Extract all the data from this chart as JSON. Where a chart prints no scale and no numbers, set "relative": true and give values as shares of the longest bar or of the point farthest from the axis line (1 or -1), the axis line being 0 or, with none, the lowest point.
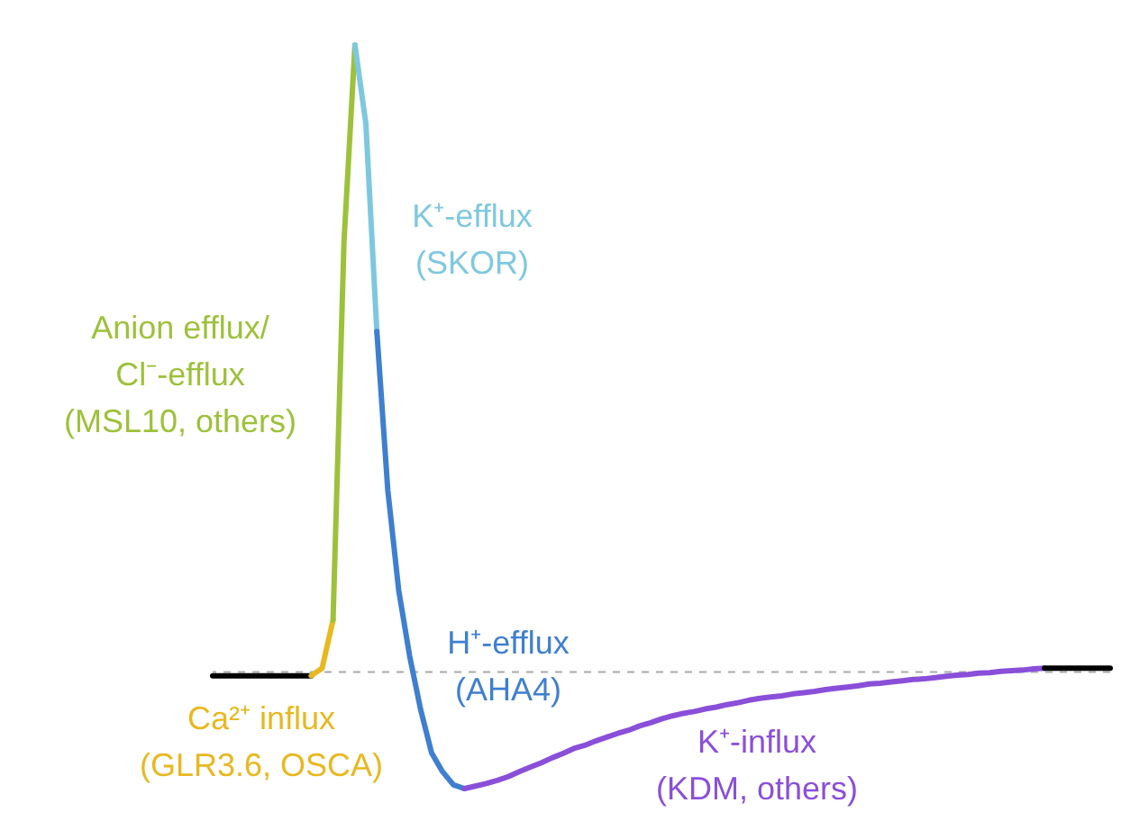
{
  "chart_data": {
    "type": "line",
    "relative": true,
    "categories": [
      null,
      null,
      null,
      null,
      null,
      null,
      null,
      null,
      null,
      null,
      null,
      null,
      null,
      null,
      null,
      null,
      null,
      null,
      null,
      null,
      null,
      null,
      null,
      null,
      null,
      null,
      null,
      null,
      null,
      null,
      null,
      null,
      null,
      null,
      null,
      null,
      null,
      null,
      null,
      null,
      null,
      null,
      null,
      null,
      null,
      null,
      null,
      null,
      null,
      null,
      null,
      null,
      null,
      null,
      null,
      null,
      null,
      null,
      null,
      null,
      null,
      null,
      null,
      null,
      null,
      null,
      null,
      null,
      null,
      null,
      null,
      null,
      null,
      null,
      null,
      null,
      null,
      null,
      null,
      null,
      null,
      null,
      null
    ],
    "series": [
      {
        "color": "#000000",
        "values": [
          -0.006,
          -0.006,
          -0.006,
          -0.006,
          -0.006,
          -0.006,
          -0.006,
          -0.006,
          -0.006,
          -0.006,
          null,
          null,
          null,
          null,
          null,
          null,
          null,
          null,
          null,
          null,
          null,
          null,
          null,
          null,
          null,
          null,
          null,
          null,
          null,
          null,
          null,
          null,
          null,
          null,
          null,
          null,
          null,
          null,
          null,
          null,
          null,
          null,
          null,
          null,
          null,
          null,
          null,
          null,
          null,
          null,
          null,
          null,
          null,
          null,
          null,
          null,
          null,
          null,
          null,
          null,
          null,
          null,
          null,
          null,
          null,
          null,
          null,
          null,
          null,
          null,
          null,
          null,
          null,
          null,
          null,
          null,
          null,
          null,
          null,
          null,
          null,
          null,
          null
        ]
      },
      {
        "name": "Ca²⁺ influx\n(GLR3.6, OSCA)",
        "color": "#e8b820",
        "values": [
          null,
          null,
          null,
          null,
          null,
          null,
          null,
          null,
          null,
          -0.006,
          0.006,
          0.083,
          null,
          null,
          null,
          null,
          null,
          null,
          null,
          null,
          null,
          null,
          null,
          null,
          null,
          null,
          null,
          null,
          null,
          null,
          null,
          null,
          null,
          null,
          null,
          null,
          null,
          null,
          null,
          null,
          null,
          null,
          null,
          null,
          null,
          null,
          null,
          null,
          null,
          null,
          null,
          null,
          null,
          null,
          null,
          null,
          null,
          null,
          null,
          null,
          null,
          null,
          null,
          null,
          null,
          null,
          null,
          null,
          null,
          null,
          null,
          null,
          null,
          null,
          null,
          null,
          null,
          null,
          null,
          null,
          null,
          null,
          null
        ]
      },
      {
        "name": "Anion efflux/\nCl⁻-efflux\n(MSL10, others)",
        "color": "#9dc13b",
        "values": [
          null,
          null,
          null,
          null,
          null,
          null,
          null,
          null,
          null,
          null,
          null,
          0.083,
          0.687,
          1,
          null,
          null,
          null,
          null,
          null,
          null,
          null,
          null,
          null,
          null,
          null,
          null,
          null,
          null,
          null,
          null,
          null,
          null,
          null,
          null,
          null,
          null,
          null,
          null,
          null,
          null,
          null,
          null,
          null,
          null,
          null,
          null,
          null,
          null,
          null,
          null,
          null,
          null,
          null,
          null,
          null,
          null,
          null,
          null,
          null,
          null,
          null,
          null,
          null,
          null,
          null,
          null,
          null,
          null,
          null,
          null,
          null,
          null,
          null,
          null,
          null,
          null,
          null,
          null,
          null,
          null,
          null,
          null,
          null
        ]
      },
      {
        "name": "K⁺-efflux\n(SKOR)",
        "color": "#7ec8df",
        "values": [
          null,
          null,
          null,
          null,
          null,
          null,
          null,
          null,
          null,
          null,
          null,
          null,
          null,
          1,
          0.874,
          0.543,
          null,
          null,
          null,
          null,
          null,
          null,
          null,
          null,
          null,
          null,
          null,
          null,
          null,
          null,
          null,
          null,
          null,
          null,
          null,
          null,
          null,
          null,
          null,
          null,
          null,
          null,
          null,
          null,
          null,
          null,
          null,
          null,
          null,
          null,
          null,
          null,
          null,
          null,
          null,
          null,
          null,
          null,
          null,
          null,
          null,
          null,
          null,
          null,
          null,
          null,
          null,
          null,
          null,
          null,
          null,
          null,
          null,
          null,
          null,
          null,
          null,
          null,
          null,
          null,
          null,
          null,
          null
        ]
      },
      {
        "name": "H⁺-efflux\n(AHA4)",
        "color": "#3f7fcf",
        "values": [
          null,
          null,
          null,
          null,
          null,
          null,
          null,
          null,
          null,
          null,
          null,
          null,
          null,
          null,
          null,
          0.543,
          0.29,
          0.13,
          0.025,
          -0.06,
          -0.129,
          -0.159,
          -0.18,
          -0.186,
          null,
          null,
          null,
          null,
          null,
          null,
          null,
          null,
          null,
          null,
          null,
          null,
          null,
          null,
          null,
          null,
          null,
          null,
          null,
          null,
          null,
          null,
          null,
          null,
          null,
          null,
          null,
          null,
          null,
          null,
          null,
          null,
          null,
          null,
          null,
          null,
          null,
          null,
          null,
          null,
          null,
          null,
          null,
          null,
          null,
          null,
          null,
          null,
          null,
          null,
          null,
          null,
          null,
          null,
          null,
          null,
          null,
          null,
          null
        ]
      },
      {
        "name": "K⁺-influx\n(KDM, others)",
        "color": "#8a4fd9",
        "values": [
          null,
          null,
          null,
          null,
          null,
          null,
          null,
          null,
          null,
          null,
          null,
          null,
          null,
          null,
          null,
          null,
          null,
          null,
          null,
          null,
          null,
          null,
          null,
          -0.186,
          -0.182,
          -0.178,
          -0.173,
          -0.167,
          -0.159,
          -0.152,
          -0.145,
          -0.137,
          -0.13,
          -0.122,
          -0.117,
          -0.11,
          -0.104,
          -0.098,
          -0.093,
          -0.086,
          -0.081,
          -0.075,
          -0.07,
          -0.066,
          -0.063,
          -0.059,
          -0.056,
          -0.052,
          -0.049,
          -0.045,
          -0.042,
          -0.04,
          -0.038,
          -0.035,
          -0.033,
          -0.031,
          -0.028,
          -0.026,
          -0.024,
          -0.022,
          -0.019,
          -0.018,
          -0.016,
          -0.014,
          -0.012,
          -0.011,
          -0.009,
          -0.007,
          -0.005,
          -0.004,
          -0.002,
          -0.001,
          0.001,
          0.002,
          0.003,
          0.005,
          0.006,
          null,
          null,
          null,
          null,
          null,
          null
        ]
      },
      {
        "color": "#000000",
        "values": [
          null,
          null,
          null,
          null,
          null,
          null,
          null,
          null,
          null,
          null,
          null,
          null,
          null,
          null,
          null,
          null,
          null,
          null,
          null,
          null,
          null,
          null,
          null,
          null,
          null,
          null,
          null,
          null,
          null,
          null,
          null,
          null,
          null,
          null,
          null,
          null,
          null,
          null,
          null,
          null,
          null,
          null,
          null,
          null,
          null,
          null,
          null,
          null,
          null,
          null,
          null,
          null,
          null,
          null,
          null,
          null,
          null,
          null,
          null,
          null,
          null,
          null,
          null,
          null,
          null,
          null,
          null,
          null,
          null,
          null,
          null,
          null,
          null,
          null,
          null,
          null,
          0.006,
          0.006,
          0.006,
          0.006,
          0.006,
          0.006,
          0.006
        ]
      }
    ],
    "ref_lines": [
      {
        "axis": "y",
        "value": 0,
        "color": "#aaaaaa",
        "line_style": "dashed"
      }
    ]
  }
}
